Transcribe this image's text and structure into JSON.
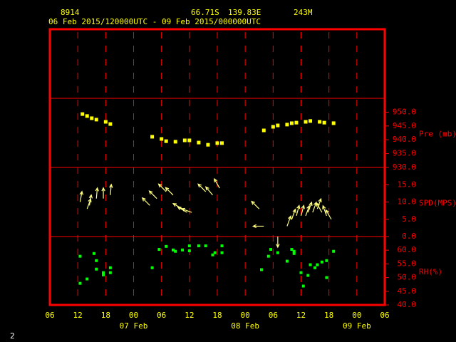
{
  "header": {
    "station": "8914",
    "lat": "66.71S",
    "lon": "139.83E",
    "elev": "243M",
    "period": "06 Feb 2015/120000UTC - 09 Feb 2015/000000UTC"
  },
  "footer_label": "2",
  "x_axis": {
    "xlim": [
      0,
      72
    ],
    "xticks": [
      {
        "value": 0,
        "label": "06"
      },
      {
        "value": 6,
        "label": "12"
      },
      {
        "value": 12,
        "label": "18"
      },
      {
        "value": 18,
        "label": "00"
      },
      {
        "value": 24,
        "label": "06"
      },
      {
        "value": 30,
        "label": "12"
      },
      {
        "value": 36,
        "label": "18"
      },
      {
        "value": 42,
        "label": "00"
      },
      {
        "value": 48,
        "label": "06"
      },
      {
        "value": 54,
        "label": "12"
      },
      {
        "value": 60,
        "label": "18"
      },
      {
        "value": 66,
        "label": "00"
      },
      {
        "value": 72,
        "label": "06"
      }
    ],
    "date_labels": [
      {
        "value": 18,
        "label": "07 Feb"
      },
      {
        "value": 42,
        "label": "08 Feb"
      },
      {
        "value": 66,
        "label": "09 Feb"
      }
    ]
  },
  "chart_data": [
    {
      "type": "scatter",
      "ylabel": "Pre (mb)",
      "color": "#ffff00",
      "ylim": [
        930,
        955
      ],
      "yticks": [
        {
          "value": 930,
          "label": "930.0"
        },
        {
          "value": 935,
          "label": "935.0"
        },
        {
          "value": 940,
          "label": "940.0"
        },
        {
          "value": 945,
          "label": "945.0"
        },
        {
          "value": 950,
          "label": "950.0"
        }
      ],
      "x": [
        7,
        8,
        9,
        10,
        12,
        13,
        22,
        24,
        25,
        27,
        29,
        30,
        32,
        34,
        36,
        37,
        46,
        48,
        49,
        51,
        52,
        53,
        55,
        56,
        58,
        59,
        61
      ],
      "values": [
        949.3,
        948.6,
        947.8,
        947.3,
        946.5,
        945.7,
        941.1,
        940.3,
        939.5,
        939.3,
        939.8,
        939.8,
        939.0,
        938.2,
        938.8,
        938.8,
        943.4,
        944.7,
        945.2,
        945.5,
        946.0,
        946.2,
        946.5,
        946.8,
        946.5,
        946.2,
        946.0
      ]
    },
    {
      "type": "wind",
      "ylabel": "SPD(MPS)",
      "color": "#ffff80",
      "ylim": [
        0,
        20
      ],
      "yticks": [
        {
          "value": 0,
          "label": "0.0"
        },
        {
          "value": 5,
          "label": "5.0"
        },
        {
          "value": 10,
          "label": "10.0"
        },
        {
          "value": 15,
          "label": "15.0"
        }
      ],
      "x": [
        6.5,
        8,
        8.5,
        10,
        11.5,
        13,
        21.5,
        23,
        25,
        26.5,
        28.5,
        29.5,
        30.5,
        33.5,
        35,
        36.5,
        45,
        46,
        49,
        51,
        52,
        53,
        54,
        55,
        55.5,
        56.5,
        57.5,
        58.5,
        59.5,
        60.5
      ],
      "values": [
        10,
        8,
        9,
        11,
        11,
        12,
        9,
        11,
        13,
        12,
        8,
        7,
        7,
        13,
        12,
        14,
        8,
        3,
        0,
        3,
        5,
        6,
        6,
        6,
        7,
        7,
        8,
        7,
        6,
        5
      ],
      "directions": [
        10,
        20,
        10,
        5,
        0,
        5,
        315,
        315,
        315,
        315,
        300,
        300,
        290,
        315,
        320,
        330,
        315,
        270,
        180,
        20,
        20,
        15,
        15,
        20,
        20,
        20,
        20,
        330,
        340,
        330
      ]
    },
    {
      "type": "scatter",
      "ylabel": "RH(%)",
      "color": "#00ff00",
      "ylim": [
        40,
        65
      ],
      "yticks": [
        {
          "value": 40,
          "label": "40.0"
        },
        {
          "value": 45,
          "label": "45.0"
        },
        {
          "value": 50,
          "label": "50.0"
        },
        {
          "value": 55,
          "label": "55.0"
        },
        {
          "value": 60,
          "label": "60.0"
        }
      ],
      "x": [
        6.5,
        6.5,
        8,
        9.5,
        10,
        10,
        11.5,
        11.5,
        13,
        13,
        22,
        23.5,
        25,
        26.5,
        27,
        28.5,
        30,
        30,
        32,
        33.5,
        35,
        35.5,
        37,
        37,
        45.5,
        47,
        47.5,
        49,
        51,
        52,
        52.5,
        52.5,
        54,
        54.5,
        55.5,
        56,
        57,
        57.5,
        58.5,
        59.5,
        59.5,
        61
      ],
      "values": [
        57.8,
        47.9,
        49.5,
        58.8,
        56.2,
        53.1,
        51.8,
        51.0,
        53.6,
        51.8,
        53.6,
        60.3,
        61.4,
        60.1,
        59.6,
        60.1,
        59.8,
        61.6,
        61.6,
        61.6,
        58.3,
        59.1,
        59.1,
        61.6,
        52.9,
        57.8,
        60.3,
        59.1,
        56.0,
        60.3,
        59.6,
        58.8,
        51.8,
        46.9,
        50.8,
        54.7,
        53.6,
        54.7,
        55.7,
        56.2,
        50.0,
        59.6
      ]
    }
  ]
}
